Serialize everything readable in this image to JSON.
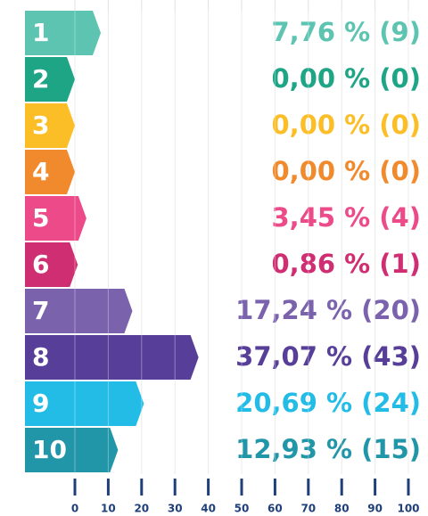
{
  "chart_data": {
    "type": "bar",
    "categories": [
      "1",
      "2",
      "3",
      "4",
      "5",
      "6",
      "7",
      "8",
      "9",
      "10"
    ],
    "values": [
      7.76,
      0.0,
      0.0,
      0.0,
      3.45,
      0.86,
      17.24,
      37.07,
      20.69,
      12.93
    ],
    "value_labels": [
      "7,76 % (9)",
      "0,00 % (0)",
      "0,00 % (0)",
      "0,00 % (0)",
      "3,45 % (4)",
      "0,86 % (1)",
      "17,24 % (20)",
      "37,07 % (43)",
      "20,69 % (24)",
      "12,93 % (15)"
    ],
    "colors": [
      "#5cc4b0",
      "#1ea586",
      "#fbbe27",
      "#f08a2d",
      "#ec4a89",
      "#cf2f72",
      "#7a62ad",
      "#573f99",
      "#22bce6",
      "#2196a8"
    ],
    "xlim": [
      0,
      100
    ],
    "xticks": [
      0,
      10,
      20,
      30,
      40,
      50,
      60,
      70,
      80,
      90,
      100
    ],
    "grid": true
  }
}
